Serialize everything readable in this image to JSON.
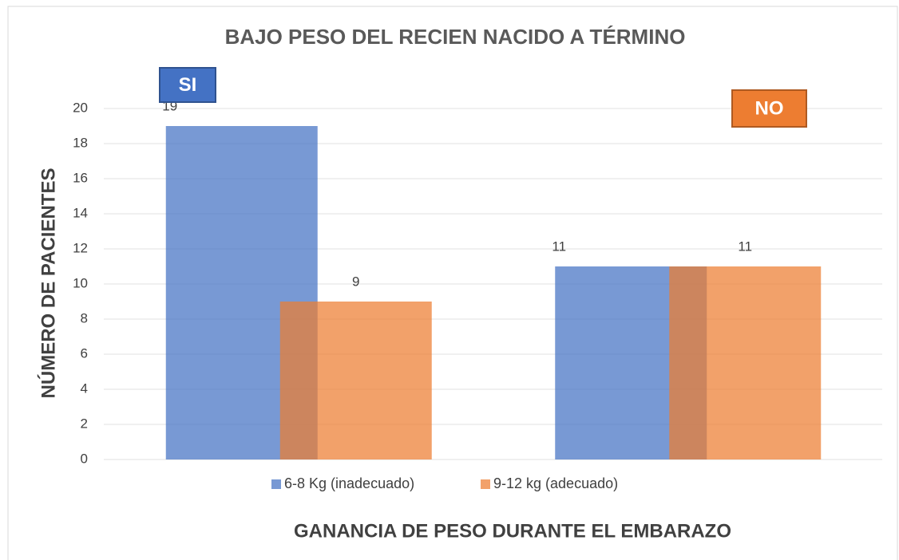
{
  "chart_data": {
    "type": "bar",
    "title": "BAJO PESO DEL RECIEN NACIDO A TÉRMINO",
    "y_label": "NÚMERO DE PACIENTES",
    "x_label": "GANANCIA DE PESO DURANTE EL EMBARAZO",
    "categories": [
      "SI",
      "NO"
    ],
    "series": [
      {
        "name": "6-8 Kg (inadecuado)",
        "color": "#4472c4",
        "values": [
          19,
          11
        ]
      },
      {
        "name": "9-12 kg (adecuado)",
        "color": "#ed7d31",
        "values": [
          9,
          11
        ]
      }
    ],
    "ylim": [
      0,
      20
    ],
    "yticks": [
      0,
      2,
      4,
      6,
      8,
      10,
      12,
      14,
      16,
      18,
      20
    ],
    "grid": true,
    "legend": "bottom"
  }
}
